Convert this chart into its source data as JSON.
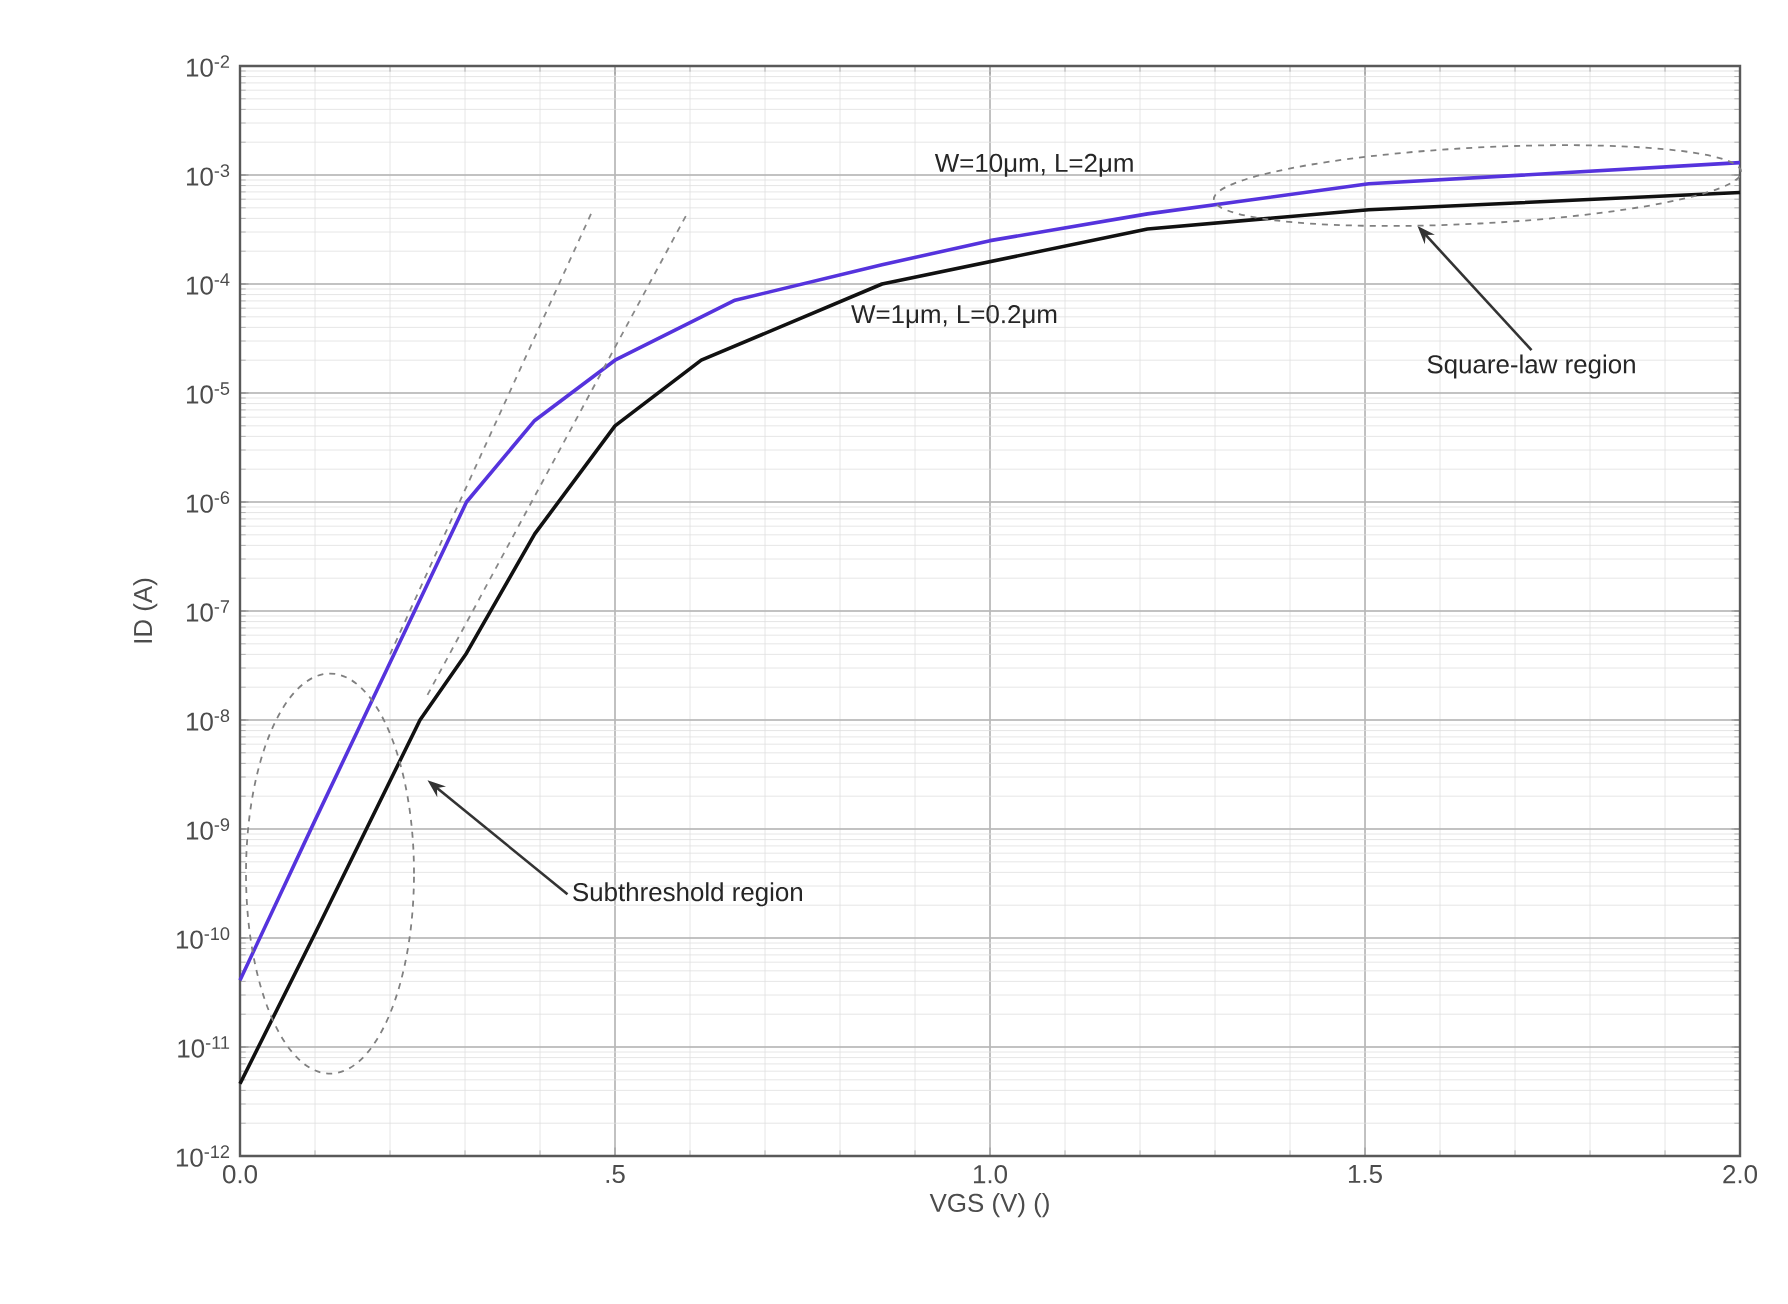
{
  "chart_data": {
    "type": "line",
    "xlabel": "VGS (V) ()",
    "ylabel": "ID (A)",
    "log": "y",
    "grid": true,
    "marker": "none",
    "xlim": [
      0,
      2
    ],
    "ylim": [
      1e-12,
      0.01
    ],
    "xticks": [
      {
        "value": 0,
        "label": "0.0"
      },
      {
        "value": 0.5,
        "label": ".5"
      },
      {
        "value": 1,
        "label": "1.0"
      },
      {
        "value": 1.5,
        "label": "1.5"
      },
      {
        "value": 2,
        "label": "2.0"
      }
    ],
    "yticks": [
      {
        "value": 1e-12,
        "label": "10$^{-12}$"
      },
      {
        "value": 1e-11,
        "label": "10$^{-11}$"
      },
      {
        "value": 1e-10,
        "label": "10$^{-10}$"
      },
      {
        "value": 1e-09,
        "label": "10$^{-9}$"
      },
      {
        "value": 1e-08,
        "label": "10$^{-8}$"
      },
      {
        "value": 1e-07,
        "label": "10$^{-7}$"
      },
      {
        "value": 1e-06,
        "label": "10$^{-6}$"
      },
      {
        "value": 1e-05,
        "label": "10$^{-5}$"
      },
      {
        "value": 0.0001,
        "label": "10$^{-4}$"
      },
      {
        "value": 0.001,
        "label": "10$^{-3}$"
      },
      {
        "value": 0.01,
        "label": "10$^{-2}$"
      }
    ],
    "series": [
      {
        "name": "W=10μm, L=2μm",
        "color": "#5533dd",
        "line_style": "solid",
        "x": [
          0,
          0.1,
          0.206,
          0.302,
          0.393,
          0.5,
          0.66,
          0.856,
          1.0,
          1.21,
          1.505,
          2.0
        ],
        "values": [
          4.1e-11,
          1.2e-09,
          4.1e-08,
          1e-06,
          5.6e-06,
          2e-05,
          7.1e-05,
          0.00015,
          0.00025,
          0.00044,
          0.00083,
          0.0013
        ]
      },
      {
        "name": "W=1μm, L=0.2μm",
        "color": "#111111",
        "line_style": "solid",
        "x": [
          0,
          0.1,
          0.24,
          0.302,
          0.393,
          0.5,
          0.615,
          0.856,
          1.21,
          1.505,
          2.0
        ],
        "values": [
          4.6e-12,
          1.1e-10,
          1e-08,
          4.1e-08,
          5.1e-07,
          5e-06,
          2e-05,
          0.0001,
          0.00032,
          0.00048,
          0.00069
        ]
      },
      {
        "color": "#888888",
        "line_style": "dashed",
        "x": [
          0.2,
          0.468
        ],
        "values": [
          4e-08,
          0.00044
        ]
      },
      {
        "color": "#888888",
        "line_style": "dashed",
        "x": [
          0.25,
          0.596
        ],
        "values": [
          1.7e-08,
          0.00044
        ]
      }
    ],
    "annotations": [
      "Subthreshold region",
      "Square-law region"
    ]
  }
}
